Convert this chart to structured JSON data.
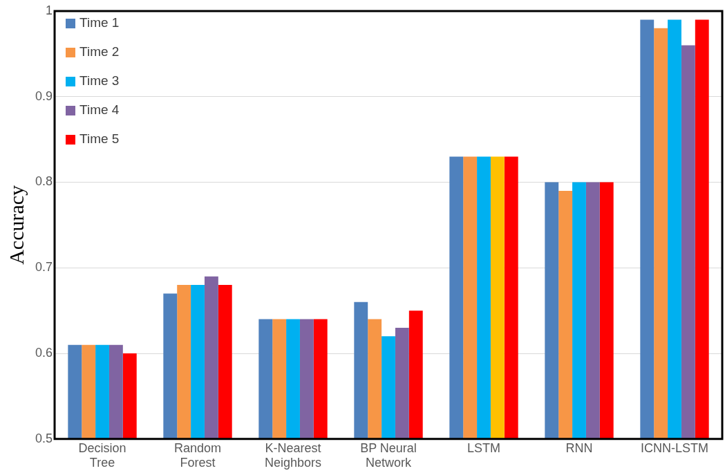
{
  "chart_data": {
    "type": "bar",
    "ylabel": "Accuracy",
    "categories": [
      "Decision Tree",
      "Random Forest",
      "K-Nearest Neighbors",
      "BP Neural Network",
      "LSTM",
      "RNN",
      "ICNN-LSTM"
    ],
    "series": [
      {
        "name": "Time 1",
        "color": "#4f81bd",
        "values": [
          0.61,
          0.67,
          0.64,
          0.66,
          0.83,
          0.8,
          0.99
        ]
      },
      {
        "name": "Time 2",
        "color": "#f79646",
        "values": [
          0.61,
          0.68,
          0.64,
          0.64,
          0.83,
          0.79,
          0.98
        ]
      },
      {
        "name": "Time 3",
        "color": "#00b0f0",
        "values": [
          0.61,
          0.68,
          0.64,
          0.62,
          0.83,
          0.8,
          0.99
        ]
      },
      {
        "name": "Time 4",
        "color": "#8064a2",
        "colors": [
          "#8064a2",
          "#8064a2",
          "#8064a2",
          "#8064a2",
          "#ffc000",
          "#8064a2",
          "#8064a2"
        ],
        "values": [
          0.61,
          0.69,
          0.64,
          0.63,
          0.83,
          0.8,
          0.96
        ]
      },
      {
        "name": "Time 5",
        "color": "#ff0000",
        "values": [
          0.6,
          0.68,
          0.64,
          0.65,
          0.83,
          0.8,
          0.99
        ]
      }
    ],
    "ylim": [
      0.5,
      1
    ],
    "yticks": [
      0.5,
      0.6,
      0.7,
      0.8,
      0.9,
      1
    ],
    "grid": "y",
    "legend": "top left"
  }
}
